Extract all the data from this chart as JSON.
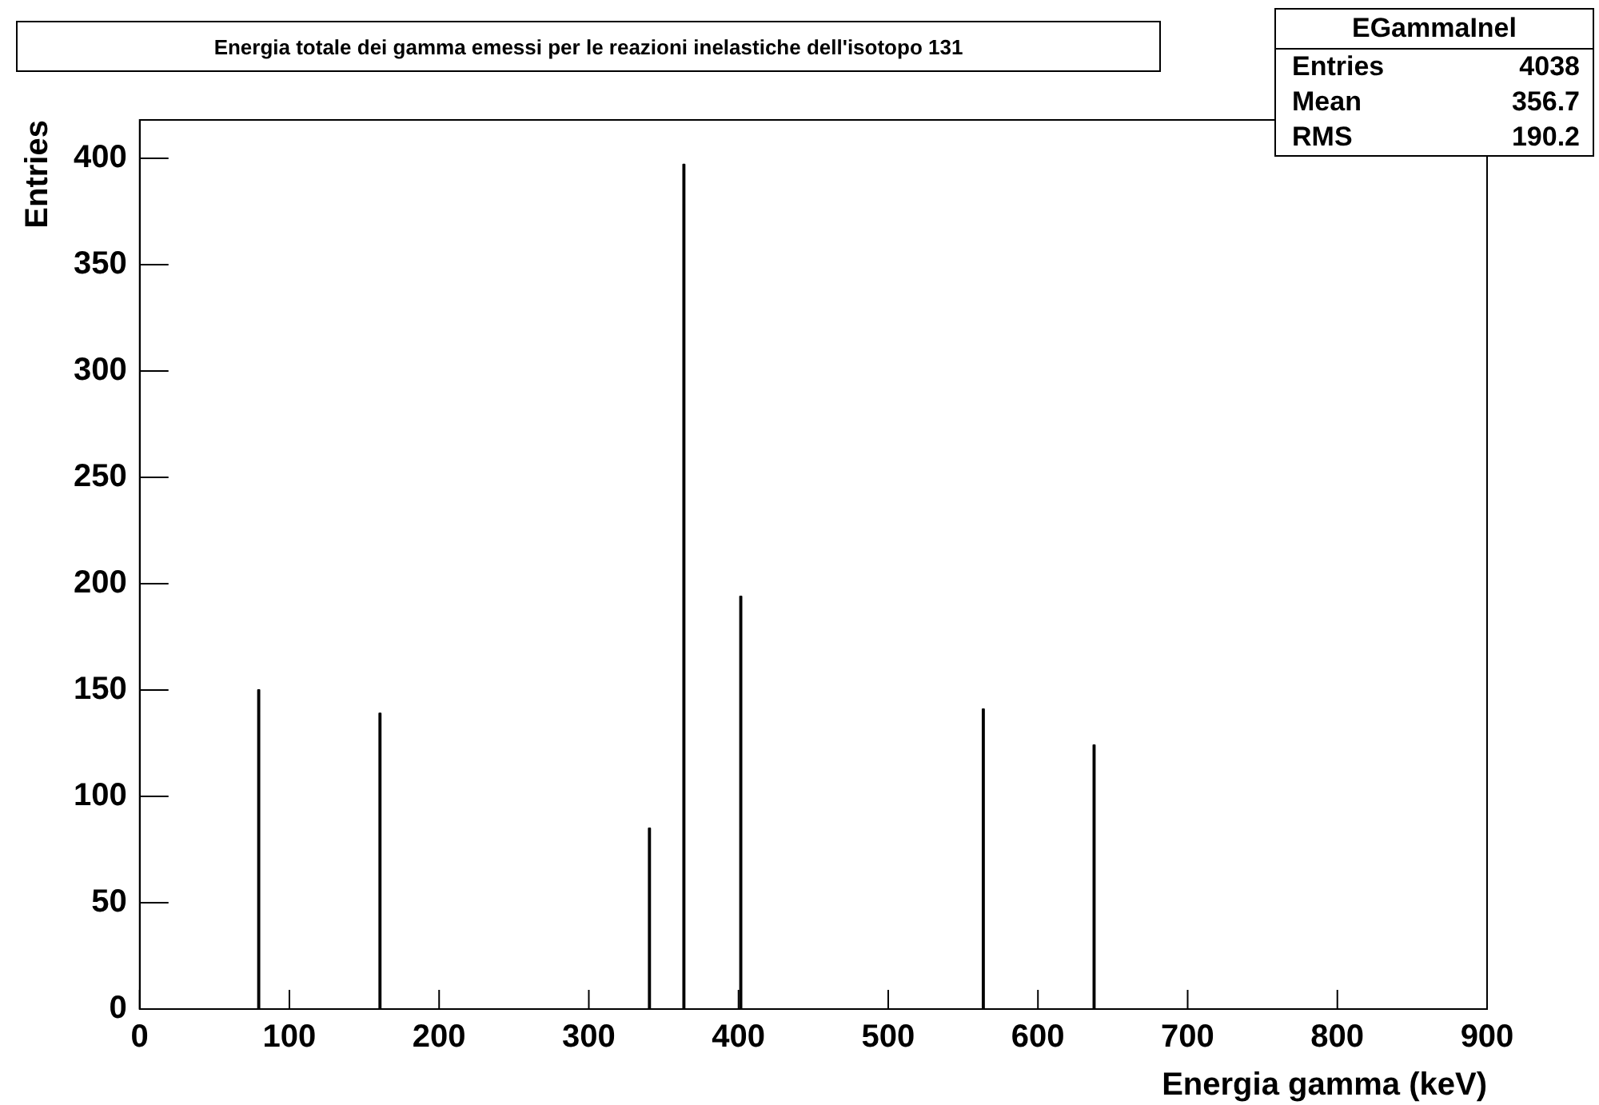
{
  "chart_data": {
    "type": "histogram",
    "title": "Energia totale dei gamma emessi per le reazioni inelastiche dell'isotopo 131",
    "xlabel": "Energia gamma (keV)",
    "ylabel": "Entries",
    "bins": [
      0,
      79,
      80,
      160,
      161,
      340,
      341,
      363,
      364,
      401,
      402,
      563,
      564,
      637,
      638,
      900
    ],
    "values": [
      0,
      150,
      0,
      139,
      0,
      85,
      0,
      397,
      0,
      194,
      0,
      141,
      0,
      124,
      0
    ],
    "color": "#000000",
    "xlim": [
      0,
      900
    ],
    "ylim": [
      0,
      418
    ],
    "xticks": [
      0,
      100,
      200,
      300,
      400,
      500,
      600,
      700,
      800,
      900
    ],
    "yticks": [
      0,
      50,
      100,
      150,
      200,
      250,
      300,
      350,
      400
    ],
    "grid": false,
    "legend": false,
    "annotations": [
      "EGammaInel",
      "Entries 4038",
      "Mean 356.7",
      "RMS 190.2"
    ]
  }
}
